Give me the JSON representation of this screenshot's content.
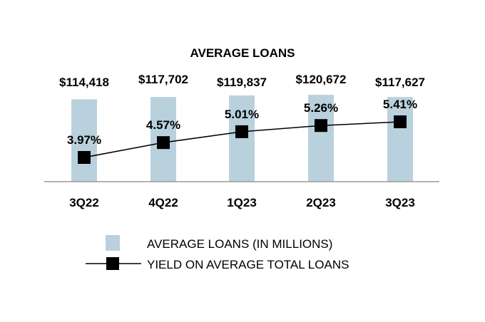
{
  "chart_data": {
    "type": "bar",
    "title": "AVERAGE LOANS",
    "categories": [
      "3Q22",
      "4Q22",
      "1Q23",
      "2Q23",
      "3Q23"
    ],
    "series": [
      {
        "name": "AVERAGE LOANS (IN MILLIONS)",
        "type": "bar",
        "values": [
          114418,
          117702,
          119837,
          120672,
          117627
        ],
        "labels": [
          "$114,418",
          "$117,702",
          "$119,837",
          "$120,672",
          "$117,627"
        ],
        "color": "#b9d1dc"
      },
      {
        "name": "YIELD ON AVERAGE TOTAL LOANS",
        "type": "line",
        "values": [
          3.97,
          4.57,
          5.01,
          5.26,
          5.41
        ],
        "labels": [
          "3.97%",
          "4.57%",
          "5.01%",
          "5.26%",
          "5.41%"
        ],
        "color": "#000000"
      }
    ],
    "legend": "bottom",
    "grid": false
  }
}
